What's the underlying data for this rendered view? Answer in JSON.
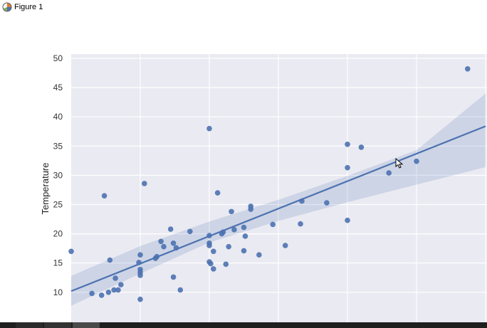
{
  "window": {
    "title": "Figure 1",
    "icon": "matplotlib-figure-icon"
  },
  "chart_data": {
    "type": "scatter",
    "title": "",
    "xlabel": "",
    "ylabel": "Temperature",
    "ylim": [
      5,
      50
    ],
    "xlim": [
      0,
      30
    ],
    "yticks": [
      10,
      15,
      20,
      25,
      30,
      35,
      40,
      45,
      50
    ],
    "xgrid": [
      5,
      10,
      15,
      20,
      25,
      30
    ],
    "grid": true,
    "style": "seaborn-darkgrid",
    "colors": {
      "background": "#eaeaf2",
      "points": "#4c72b0",
      "line": "#4c72b0",
      "band": "#4c72b0"
    },
    "points": [
      [
        0,
        17
      ],
      [
        1.5,
        9.8
      ],
      [
        2.2,
        9.5
      ],
      [
        2.4,
        26.5
      ],
      [
        2.7,
        10
      ],
      [
        2.8,
        15.5
      ],
      [
        3.1,
        10.4
      ],
      [
        3.2,
        12.4
      ],
      [
        3.4,
        10.4
      ],
      [
        3.6,
        11.3
      ],
      [
        4.9,
        15.1
      ],
      [
        5,
        13.4
      ],
      [
        5,
        13.9
      ],
      [
        5,
        12.9
      ],
      [
        5,
        16.4
      ],
      [
        5,
        8.8
      ],
      [
        5.3,
        28.6
      ],
      [
        6.1,
        15.8
      ],
      [
        6.2,
        16.1
      ],
      [
        6.5,
        18.7
      ],
      [
        6.7,
        17.8
      ],
      [
        7.2,
        20.8
      ],
      [
        7.4,
        18.4
      ],
      [
        7.4,
        12.6
      ],
      [
        7.6,
        17.6
      ],
      [
        7.9,
        10.4
      ],
      [
        8.6,
        20.4
      ],
      [
        10,
        18.4
      ],
      [
        10,
        19.7
      ],
      [
        10,
        18
      ],
      [
        10,
        15.2
      ],
      [
        10.1,
        14.9
      ],
      [
        10,
        38
      ],
      [
        10.3,
        14
      ],
      [
        10.3,
        17
      ],
      [
        10.6,
        27
      ],
      [
        10.9,
        20
      ],
      [
        11,
        20.3
      ],
      [
        11.2,
        14.8
      ],
      [
        11.4,
        17.8
      ],
      [
        11.6,
        23.8
      ],
      [
        11.8,
        20.7
      ],
      [
        12.5,
        21.1
      ],
      [
        12.5,
        17.1
      ],
      [
        12.6,
        19.6
      ],
      [
        13,
        24.2
      ],
      [
        13,
        24.7
      ],
      [
        13.6,
        16.4
      ],
      [
        14.6,
        21.6
      ],
      [
        15.5,
        18
      ],
      [
        16.6,
        21.7
      ],
      [
        16.7,
        25.6
      ],
      [
        18.5,
        25.3
      ],
      [
        20,
        35.3
      ],
      [
        20,
        31.3
      ],
      [
        20,
        22.3
      ],
      [
        21,
        34.8
      ],
      [
        23,
        30.4
      ],
      [
        25,
        32.4
      ],
      [
        28.7,
        48.2
      ]
    ],
    "regression": {
      "x": [
        0,
        30
      ],
      "y": [
        10.2,
        38.4
      ]
    },
    "confidence_band": {
      "x": [
        0,
        5,
        10,
        15,
        20,
        25,
        30
      ],
      "lower": [
        7.7,
        13.2,
        18.5,
        22.2,
        25.4,
        28.4,
        31.4
      ],
      "upper": [
        12.8,
        17.9,
        22.1,
        25.8,
        29.9,
        34.3,
        44.0
      ]
    }
  }
}
